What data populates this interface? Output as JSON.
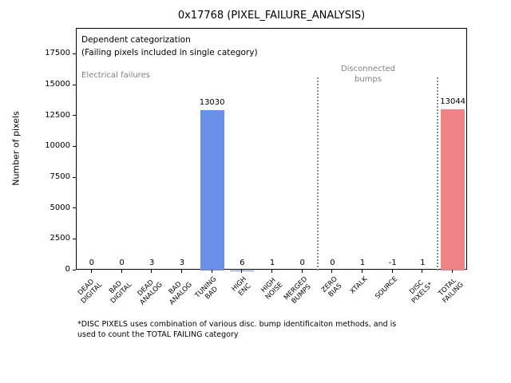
{
  "window": {
    "title": "0x17768 (PIXEL_FAILURE_ANALYSIS)"
  },
  "chart_data": {
    "type": "bar",
    "title": "0x17768 (PIXEL_FAILURE_ANALYSIS)",
    "ylabel": "Number of pixels",
    "xlabel": "",
    "categories": [
      "DEAD\nDIGITAL",
      "BAD\nDIGITAL",
      "DEAD\nANALOG",
      "BAD\nANALOG",
      "TUNING\nBAD",
      "HIGH\nENC",
      "HIGH\nNOISE",
      "MERGED\nBUMPS",
      "ZERO\nBIAS",
      "XTALK",
      "SOURCE",
      "DISC\nPIXELS*",
      "TOTAL\nFAILING"
    ],
    "values": [
      0,
      0,
      3,
      3,
      13030,
      6,
      1,
      0,
      0,
      1,
      -1,
      1,
      13044
    ],
    "bar_colors": [
      "#6a8fe8",
      "#6a8fe8",
      "#6a8fe8",
      "#6a8fe8",
      "#6a8fe8",
      "#6a8fe8",
      "#6a8fe8",
      "#6a8fe8",
      "#6a8fe8",
      "#6a8fe8",
      "#6a8fe8",
      "#6a8fe8",
      "#ef8383"
    ],
    "highlight_colors": {
      "tuning_bad": "#6a8fe8",
      "total_failing": "#ef8383"
    },
    "ylim": [
      0,
      19600
    ],
    "yticks": [
      0,
      2500,
      5000,
      7500,
      10000,
      12500,
      15000,
      17500
    ],
    "grid": false,
    "legend": false,
    "separators_after_indices": [
      7,
      11
    ],
    "separator_style": "dotted-gray",
    "annotations": {
      "dependent": "Dependent categorization\n(Failing pixels included in single category)",
      "electrical": "Electrical failures",
      "disconnected": "Disconnected\nbumps"
    }
  },
  "footnote": {
    "text": "*DISC PIXELS uses combination of various disc. bump identificaiton methods, and is\nused to count the TOTAL FAILING category"
  }
}
